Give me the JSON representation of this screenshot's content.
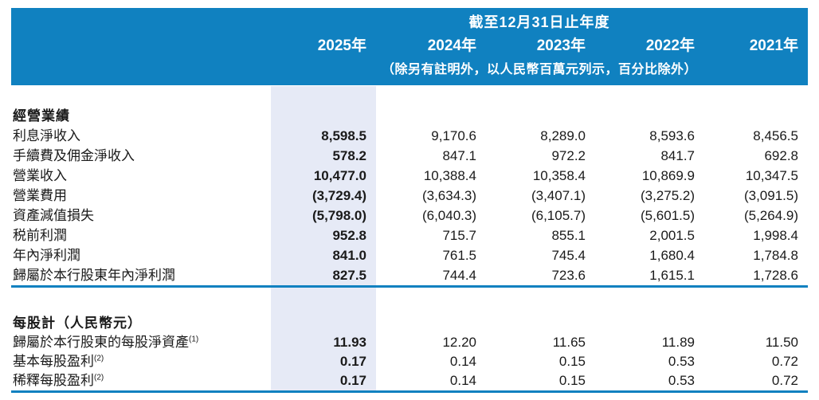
{
  "header": {
    "period_title": "截至12月31日止年度",
    "years": [
      "2025年",
      "2024年",
      "2023年",
      "2022年",
      "2021年"
    ],
    "note": "（除另有註明外，以人民幣百萬元列示，百分比除外）"
  },
  "sections": [
    {
      "title": "經營業績",
      "rows": [
        {
          "label": "利息淨收入",
          "values": [
            "8,598.5",
            "9,170.6",
            "8,289.0",
            "8,593.6",
            "8,456.5"
          ]
        },
        {
          "label": "手續費及佣金淨收入",
          "values": [
            "578.2",
            "847.1",
            "972.2",
            "841.7",
            "692.8"
          ]
        },
        {
          "label": "營業收入",
          "values": [
            "10,477.0",
            "10,388.4",
            "10,358.4",
            "10,869.9",
            "10,347.5"
          ]
        },
        {
          "label": "營業費用",
          "values": [
            "(3,729.4)",
            "(3,634.3)",
            "(3,407.1)",
            "(3,275.2)",
            "(3,091.5)"
          ]
        },
        {
          "label": "資產減值損失",
          "values": [
            "(5,798.0)",
            "(6,040.3)",
            "(6,105.7)",
            "(5,601.5)",
            "(5,264.9)"
          ]
        },
        {
          "label": "税前利潤",
          "values": [
            "952.8",
            "715.7",
            "855.1",
            "2,001.5",
            "1,998.4"
          ]
        },
        {
          "label": "年內淨利潤",
          "values": [
            "841.0",
            "761.5",
            "745.4",
            "1,680.4",
            "1,784.8"
          ]
        },
        {
          "label": "歸屬於本行股東年內淨利潤",
          "values": [
            "827.5",
            "744.4",
            "723.6",
            "1,615.1",
            "1,728.6"
          ]
        }
      ]
    },
    {
      "title": "每股計（人民幣元）",
      "rows": [
        {
          "label": "歸屬於本行股東的每股淨資產",
          "footnote": "(1)",
          "values": [
            "11.93",
            "12.20",
            "11.65",
            "11.89",
            "11.50"
          ]
        },
        {
          "label": "基本每股盈利",
          "footnote": "(2)",
          "values": [
            "0.17",
            "0.14",
            "0.15",
            "0.53",
            "0.72"
          ]
        },
        {
          "label": "稀釋每股盈利",
          "footnote": "(2)",
          "values": [
            "0.17",
            "0.14",
            "0.15",
            "0.53",
            "0.72"
          ]
        }
      ]
    }
  ],
  "colors": {
    "header_bg": "#1081c0",
    "header_text": "#ffffff",
    "highlight_column": "#e6eaf6",
    "rule": "#1081c0",
    "text": "#1a1a1a"
  }
}
